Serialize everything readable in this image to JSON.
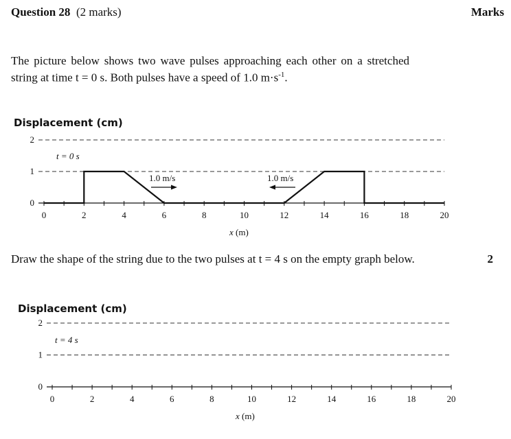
{
  "header": {
    "question_label": "Question 28",
    "marks_note": "(2 marks)",
    "marks_column": "Marks"
  },
  "intro": {
    "text_before_sup": "The picture below shows two wave pulses approaching each other on a stretched string at time t = 0 s. Both pulses have a speed of 1.0 m·s",
    "sup": "-1",
    "text_after_sup": "."
  },
  "instruction": {
    "text": "Draw the shape of the string due to the two pulses at t = 4 s on the empty graph below.",
    "marks": "2"
  },
  "graph1": {
    "ylabel": "Displacement (cm)",
    "xlabel_var": "x",
    "xlabel_unit": " (m)",
    "time_label": "t = 0 s",
    "arrow_left_label": "1.0 m/s",
    "arrow_right_label": "1.0 m/s"
  },
  "graph2": {
    "ylabel": "Displacement (cm)",
    "xlabel_var": "x",
    "xlabel_unit": " (m)",
    "time_label": "t = 4 s"
  },
  "chart_data": [
    {
      "type": "line",
      "title": "",
      "ylabel": "Displacement (cm)",
      "xlabel": "x (m)",
      "xlim": [
        0,
        20
      ],
      "ylim": [
        0,
        2
      ],
      "x_ticks": [
        0,
        2,
        4,
        6,
        8,
        10,
        12,
        14,
        16,
        18,
        20
      ],
      "y_ticks": [
        0,
        1,
        2
      ],
      "dashed_gridlines_y": [
        1,
        2
      ],
      "annotation": "t = 0 s",
      "series": [
        {
          "x": [
            0,
            2,
            2,
            4,
            6,
            12,
            14,
            16,
            16,
            20
          ],
          "y": [
            0,
            0,
            1,
            1,
            0,
            0,
            1,
            1,
            0,
            0
          ]
        }
      ],
      "arrows": [
        {
          "label": "1.0 m/s",
          "direction": "right"
        },
        {
          "label": "1.0 m/s",
          "direction": "left"
        }
      ]
    },
    {
      "type": "line",
      "title": "",
      "ylabel": "Displacement (cm)",
      "xlabel": "x (m)",
      "xlim": [
        0,
        20
      ],
      "ylim": [
        0,
        2
      ],
      "x_ticks": [
        0,
        2,
        4,
        6,
        8,
        10,
        12,
        14,
        16,
        18,
        20
      ],
      "y_ticks": [
        0,
        1,
        2
      ],
      "dashed_gridlines_y": [
        1,
        2
      ],
      "annotation": "t = 4 s",
      "series": []
    }
  ]
}
